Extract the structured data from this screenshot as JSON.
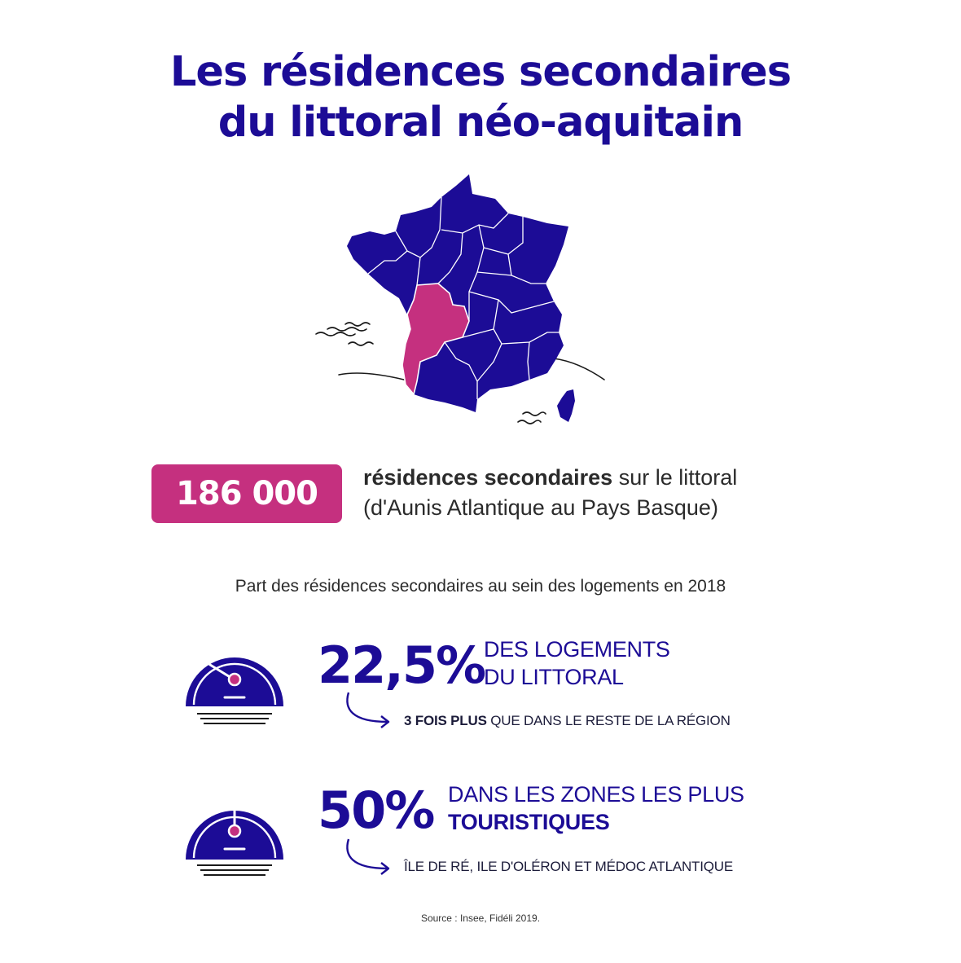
{
  "title": {
    "line1": "Les résidences secondaires",
    "line2": "du littoral néo-aquitain"
  },
  "map": {
    "icon": "france-regions-map",
    "highlight_color": "#c5307f",
    "base_color": "#1c0c96"
  },
  "headline_stat": {
    "value": "186 000",
    "text_bold": "résidences secondaires",
    "text_rest": " sur le littoral",
    "text_line2": "(d'Aunis Atlantique au Pays Basque)"
  },
  "section_title": "Part des résidences secondaires au sein des logements en 2018",
  "stats": [
    {
      "value": "22,5%",
      "caption_line1": "DES LOGEMENTS",
      "caption_line2": "DU LITTORAL",
      "note_bold": "3 FOIS PLUS",
      "note_rest": " QUE DANS LE RESTE DE LA RÉGION",
      "gauge_level": 0.225
    },
    {
      "value": "50%",
      "caption_line1": "DANS LES ZONES LES PLUS",
      "caption_line2": "TOURISTIQUES",
      "note_rest": "ÎLE DE RÉ, ILE D'OLÉRON ET MÉDOC ATLANTIQUE",
      "gauge_level": 0.5
    }
  ],
  "source": "Source : Insee, Fidéli 2019.",
  "colors": {
    "primary": "#1c0c96",
    "accent": "#c5307f"
  }
}
